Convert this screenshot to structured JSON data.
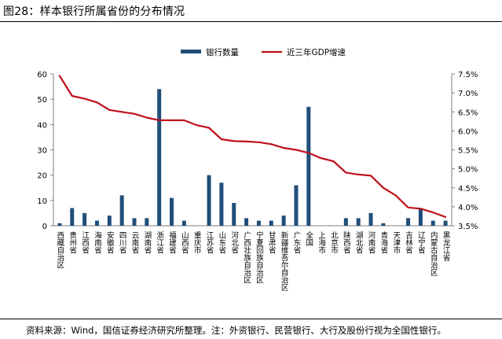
{
  "figure": {
    "title": "图28：样本银行所属省份的分布情况",
    "source": "资料来源：Wind，国信证券经济研究所整理。注：外资银行、民营银行、大行及股份行视为全国性银行。"
  },
  "colors": {
    "bar": "#1f4e79",
    "line": "#c0101a",
    "axis": "#7f7f7f"
  },
  "chart_data": {
    "type": "bar",
    "title": "",
    "xlabel": "",
    "ylabel": "",
    "categories": [
      "西藏自治区",
      "贵州省",
      "江西省",
      "海南省",
      "安徽省",
      "四川省",
      "云南省",
      "湖南省",
      "浙江省",
      "福建省",
      "山西省",
      "重庆市",
      "江苏省",
      "山东省",
      "河北省",
      "广西壮族自治区",
      "宁夏回族自治区",
      "甘肃省",
      "新疆维吾尔自治区",
      "广东省",
      "全国",
      "上海市",
      "北京市",
      "陕西省",
      "湖北省",
      "河南省",
      "青海省",
      "天津市",
      "吉林省",
      "辽宁省",
      "内蒙古自治区",
      "黑龙江省"
    ],
    "series": [
      {
        "name": "银行数量",
        "type": "bar",
        "axis": "left",
        "values": [
          1,
          7,
          5,
          2,
          4,
          12,
          3,
          3,
          54,
          11,
          2,
          0,
          20,
          17,
          9,
          3,
          2,
          2,
          4,
          16,
          47,
          0,
          0,
          3,
          3,
          5,
          1,
          0,
          3,
          7,
          2,
          2
        ]
      },
      {
        "name": "近三年GDP增速",
        "type": "line",
        "axis": "right",
        "values": [
          7.45,
          6.92,
          6.85,
          6.75,
          6.55,
          6.5,
          6.45,
          6.35,
          6.28,
          6.28,
          6.28,
          6.15,
          6.08,
          5.78,
          5.73,
          5.72,
          5.7,
          5.65,
          5.55,
          5.5,
          5.42,
          5.28,
          5.2,
          4.9,
          4.85,
          4.82,
          4.5,
          4.3,
          3.98,
          3.95,
          3.85,
          3.73
        ]
      }
    ],
    "y_left": {
      "ylim": [
        0,
        60
      ],
      "ticks": [
        "0",
        "10",
        "20",
        "30",
        "40",
        "50",
        "60"
      ]
    },
    "y_right": {
      "ylim": [
        3.5,
        7.5
      ],
      "ticks": [
        "3.5%",
        "4.0%",
        "4.5%",
        "5.0%",
        "5.5%",
        "6.0%",
        "6.5%",
        "7.0%",
        "7.5%"
      ]
    },
    "legend_position": "top-center",
    "grid": false
  }
}
